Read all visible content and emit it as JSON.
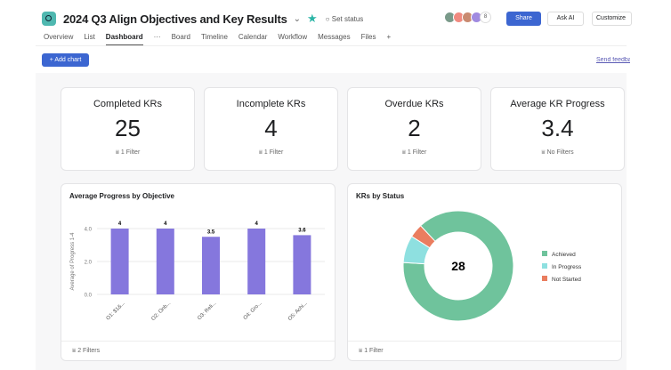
{
  "header": {
    "title": "2024 Q3 Align Objectives and Key Results",
    "set_status": "Set status",
    "avatar_count": "8",
    "share": "Share",
    "ask_ai": "Ask AI",
    "customize": "Customize"
  },
  "tabs": [
    {
      "label": "Overview"
    },
    {
      "label": "List"
    },
    {
      "label": "Dashboard"
    },
    {
      "label": "Board"
    },
    {
      "label": "Timeline"
    },
    {
      "label": "Calendar"
    },
    {
      "label": "Workflow"
    },
    {
      "label": "Messages"
    },
    {
      "label": "Files"
    }
  ],
  "toolbar": {
    "add_chart": "+ Add chart",
    "send_feedback": "Send feedback"
  },
  "kpis": [
    {
      "title": "Completed KRs",
      "value": "25",
      "filter": "1 Filter"
    },
    {
      "title": "Incomplete KRs",
      "value": "4",
      "filter": "1 Filter"
    },
    {
      "title": "Overdue KRs",
      "value": "2",
      "filter": "1 Filter"
    },
    {
      "title": "Average KR Progress",
      "value": "3.4",
      "filter": "No Filters"
    }
  ],
  "colors": {
    "accent": "#3c66d1",
    "bar": "#8577dd",
    "achieved": "#6fc39c",
    "in_progress": "#8ee0e0",
    "not_started": "#ea7d5f"
  },
  "chart_data": [
    {
      "type": "bar",
      "title": "Average Progress by Objective",
      "ylabel": "Average of Progress 1-4",
      "ylim": [
        0,
        4
      ],
      "yticks": [
        "0.0",
        "2.0",
        "4.0"
      ],
      "categories": [
        "O1: $1&...",
        "O2: Onb...",
        "O3: Reli...",
        "O4: Gro...",
        "O5: Achi..."
      ],
      "values": [
        4,
        4,
        3.5,
        4,
        3.6
      ],
      "data_labels": [
        "4",
        "4",
        "3.5",
        "4",
        "3.6"
      ],
      "filter": "2 Filters"
    },
    {
      "type": "pie",
      "title": "KRs by Status",
      "center_label": "28",
      "legend": "right",
      "slices": [
        {
          "name": "Achieved",
          "value": 88
        },
        {
          "name": "In Progress",
          "value": 8
        },
        {
          "name": "Not Started",
          "value": 4
        }
      ],
      "filter": "1 Filter"
    }
  ]
}
